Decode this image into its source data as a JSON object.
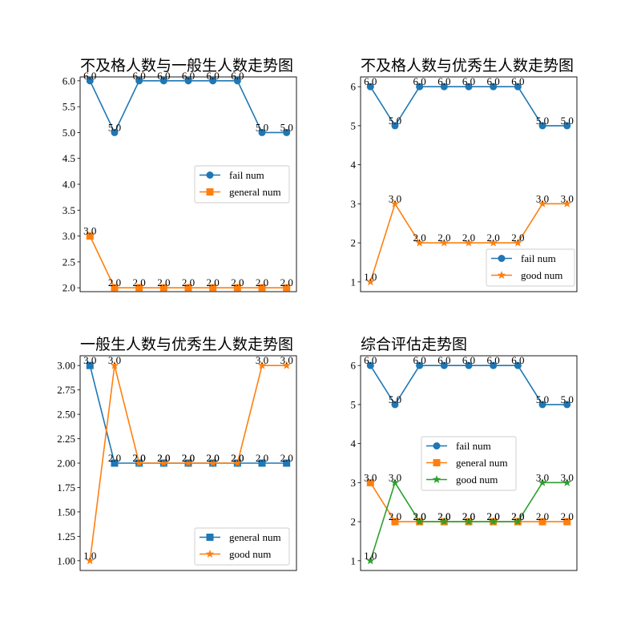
{
  "chart_data": [
    {
      "type": "line",
      "title": "不及格人数与一般生人数走势图",
      "x": [
        0,
        1,
        2,
        3,
        4,
        5,
        6,
        7,
        8
      ],
      "xticks": false,
      "ylim": [
        1.925,
        6.075
      ],
      "yticks": [
        "2.0",
        "2.5",
        "3.0",
        "3.5",
        "4.0",
        "4.5",
        "5.0",
        "5.5",
        "6.0"
      ],
      "legend": "center-right",
      "series": [
        {
          "name": "fail num",
          "color": "#1f77b4",
          "marker": "circle",
          "values": [
            6,
            5,
            6,
            6,
            6,
            6,
            6,
            5,
            5
          ],
          "labels": [
            "6.0",
            "5.0",
            "6.0",
            "6.0",
            "6.0",
            "6.0",
            "6.0",
            "5.0",
            "5.0"
          ]
        },
        {
          "name": "general num",
          "color": "#ff7f0e",
          "marker": "square",
          "values": [
            3,
            2,
            2,
            2,
            2,
            2,
            2,
            2,
            2
          ],
          "labels": [
            "3.0",
            "2.0",
            "2.0",
            "2.0",
            "2.0",
            "2.0",
            "2.0",
            "2.0",
            "2.0"
          ]
        }
      ]
    },
    {
      "type": "line",
      "title": "不及格人数与优秀生人数走势图",
      "x": [
        0,
        1,
        2,
        3,
        4,
        5,
        6,
        7,
        8
      ],
      "xticks": false,
      "ylim": [
        0.75,
        6.25
      ],
      "yticks": [
        "1",
        "2",
        "3",
        "4",
        "5",
        "6"
      ],
      "legend": "lower-right",
      "series": [
        {
          "name": "fail num",
          "color": "#1f77b4",
          "marker": "circle",
          "values": [
            6,
            5,
            6,
            6,
            6,
            6,
            6,
            5,
            5
          ],
          "labels": [
            "6.0",
            "5.0",
            "6.0",
            "6.0",
            "6.0",
            "6.0",
            "6.0",
            "5.0",
            "5.0"
          ]
        },
        {
          "name": "good num",
          "color": "#ff7f0e",
          "marker": "star",
          "values": [
            1,
            3,
            2,
            2,
            2,
            2,
            2,
            3,
            3
          ],
          "labels": [
            "1.0",
            "3.0",
            "2.0",
            "2.0",
            "2.0",
            "2.0",
            "2.0",
            "3.0",
            "3.0"
          ]
        }
      ]
    },
    {
      "type": "line",
      "title": "一般生人数与优秀生人数走势图",
      "x": [
        0,
        1,
        2,
        3,
        4,
        5,
        6,
        7,
        8
      ],
      "xticks": false,
      "ylim": [
        0.9,
        3.1
      ],
      "yticks": [
        "1.00",
        "1.25",
        "1.50",
        "1.75",
        "2.00",
        "2.25",
        "2.50",
        "2.75",
        "3.00"
      ],
      "legend": "lower-right",
      "series": [
        {
          "name": "general num",
          "color": "#1f77b4",
          "marker": "square",
          "values": [
            3,
            2,
            2,
            2,
            2,
            2,
            2,
            2,
            2
          ],
          "labels": [
            "3.0",
            "2.0",
            "2.0",
            "2.0",
            "2.0",
            "2.0",
            "2.0",
            "2.0",
            "2.0"
          ]
        },
        {
          "name": "good num",
          "color": "#ff7f0e",
          "marker": "star",
          "values": [
            1,
            3,
            2,
            2,
            2,
            2,
            2,
            3,
            3
          ],
          "labels": [
            "1.0",
            "3.0",
            "2.0",
            "2.0",
            "2.0",
            "2.0",
            "2.0",
            "3.0",
            "3.0"
          ]
        }
      ]
    },
    {
      "type": "line",
      "title": "综合评估走势图",
      "x": [
        0,
        1,
        2,
        3,
        4,
        5,
        6,
        7,
        8
      ],
      "xticks": false,
      "ylim": [
        0.75,
        6.25
      ],
      "yticks": [
        "1",
        "2",
        "3",
        "4",
        "5",
        "6"
      ],
      "legend": "center",
      "series": [
        {
          "name": "fail num",
          "color": "#1f77b4",
          "marker": "circle",
          "values": [
            6,
            5,
            6,
            6,
            6,
            6,
            6,
            5,
            5
          ],
          "labels": [
            "6.0",
            "5.0",
            "6.0",
            "6.0",
            "6.0",
            "6.0",
            "6.0",
            "5.0",
            "5.0"
          ]
        },
        {
          "name": "general num",
          "color": "#ff7f0e",
          "marker": "square",
          "values": [
            3,
            2,
            2,
            2,
            2,
            2,
            2,
            2,
            2
          ],
          "labels": [
            "3.0",
            "2.0",
            "2.0",
            "2.0",
            "2.0",
            "2.0",
            "2.0",
            "2.0",
            "2.0"
          ]
        },
        {
          "name": "good num",
          "color": "#2ca02c",
          "marker": "star",
          "values": [
            1,
            3,
            2,
            2,
            2,
            2,
            2,
            3,
            3
          ],
          "labels": [
            "1.0",
            "3.0",
            "2.0",
            "2.0",
            "2.0",
            "2.0",
            "2.0",
            "3.0",
            "3.0"
          ]
        }
      ]
    }
  ]
}
